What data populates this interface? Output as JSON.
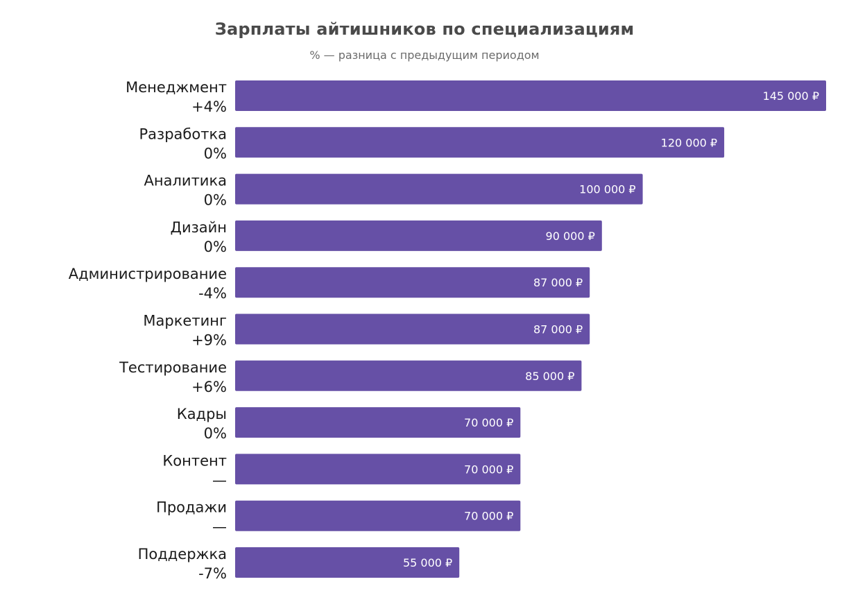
{
  "chart_data": {
    "type": "bar",
    "orientation": "horizontal",
    "title": "Зарплаты айтишников по специализациям",
    "subtitle": "% — разница с предыдущим периодом",
    "currency": "₽",
    "bar_color": "#6650a6",
    "categories": [
      "Менеджмент",
      "Разработка",
      "Аналитика",
      "Дизайн",
      "Администрирование",
      "Маркетинг",
      "Тестирование",
      "Кадры",
      "Контент",
      "Продажи",
      "Поддержка"
    ],
    "changes": [
      "+4%",
      "0%",
      "0%",
      "0%",
      "-4%",
      "+9%",
      "+6%",
      "0%",
      "—",
      "—",
      "-7%"
    ],
    "values": [
      145000,
      120000,
      100000,
      90000,
      87000,
      87000,
      85000,
      70000,
      70000,
      70000,
      55000
    ],
    "value_labels": [
      "145 000 ₽",
      "120 000 ₽",
      "100 000 ₽",
      "90 000 ₽",
      "87 000 ₽",
      "87 000 ₽",
      "85 000 ₽",
      "70 000 ₽",
      "70 000 ₽",
      "70 000 ₽",
      "55 000 ₽"
    ],
    "xlim": [
      0,
      145000
    ]
  }
}
